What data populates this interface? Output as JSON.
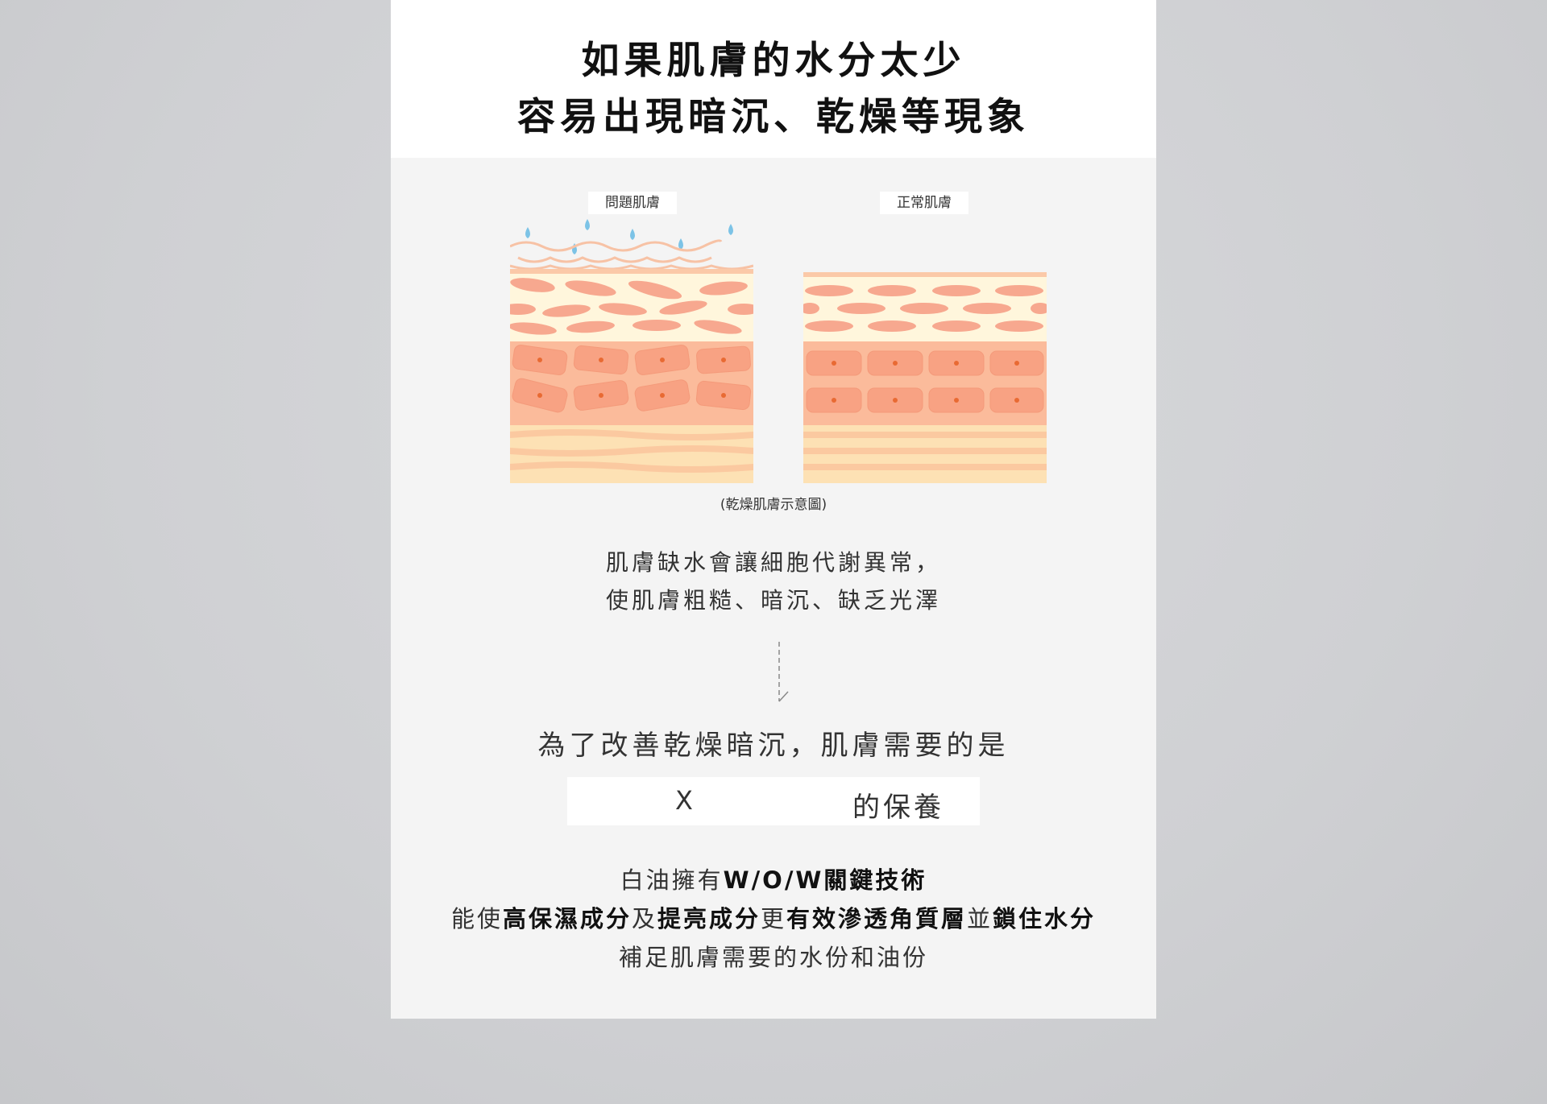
{
  "header": {
    "title_line1": "如果肌膚的水分太少",
    "title_line2": "容易出現暗沉、乾燥等現象"
  },
  "diagram": {
    "label_problem": "問題肌膚",
    "label_normal": "正常肌膚",
    "caption": "(乾燥肌膚示意圖)"
  },
  "explanation": {
    "line1": "肌膚缺水會讓細胞代謝異常，",
    "line2": "使肌膚粗糙、暗沉、缺乏光澤"
  },
  "solution": {
    "need_text": "為了改善乾燥暗沉，肌膚需要的是",
    "x_mark": "X",
    "x_suffix": "的保養"
  },
  "description": {
    "l1_plain1": "白油擁有",
    "l1_bold1": "W/O/W關鍵技術",
    "l2_plain1": "能使",
    "l2_bold1": "高保濕成分",
    "l2_plain2": "及",
    "l2_bold2": "提亮成分",
    "l2_plain3": "更",
    "l2_bold3": "有效滲透角質層",
    "l2_plain4": "並",
    "l2_bold4": "鎖住水分",
    "l3_plain1": "補足肌膚需要的水份和油份"
  },
  "colors": {
    "card_bg": "#f4f4f4",
    "header_bg": "#ffffff",
    "skin_cream": "#fff6dc",
    "skin_cell": "#f7a88f",
    "skin_band": "#fce0b3",
    "water_drop": "#7cc3e6"
  }
}
